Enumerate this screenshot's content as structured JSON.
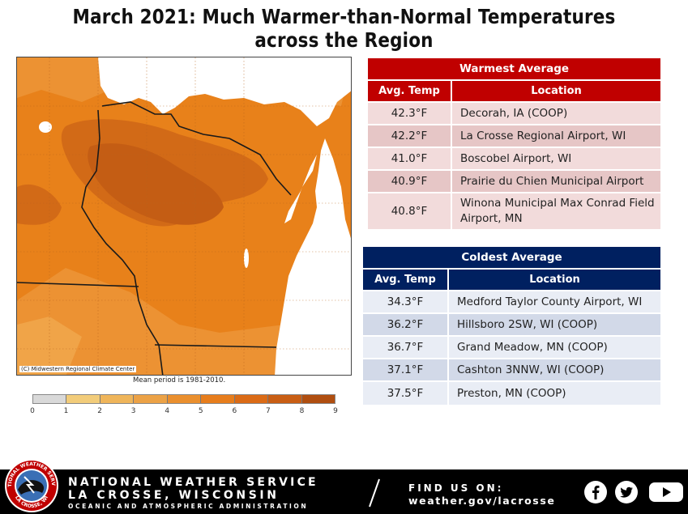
{
  "title": "March 2021:  Much Warmer-than-Normal Temperatures across the Region",
  "map": {
    "credit": "(C) Midwestern Regional Climate Center",
    "mean_period": "Mean period is 1981-2010.",
    "scale_labels": [
      "0",
      "1",
      "2",
      "3",
      "4",
      "5",
      "6",
      "7",
      "8",
      "9"
    ],
    "scale_colors": [
      "#d9d9d9",
      "#f2cc7a",
      "#efb55a",
      "#eca246",
      "#ea8f2e",
      "#e77d1c",
      "#db6b16",
      "#c95e14",
      "#b04e10"
    ],
    "colors": {
      "base": "#e8811a",
      "light": "#ec9233",
      "lighter": "#f0a448",
      "dark": "#d26a17",
      "darker": "#c45d14",
      "water": "#ffffff",
      "border": "#1a1a1a"
    }
  },
  "warmest": {
    "title": "Warmest  Average",
    "col_temp": "Avg. Temp",
    "col_location": "Location",
    "header_color": "#c00000",
    "row_colors": [
      "#f2dbdb",
      "#e6c6c6"
    ],
    "rows": [
      {
        "temp": "42.3°F",
        "location": "Decorah, IA (COOP)"
      },
      {
        "temp": "42.2°F",
        "location": "La Crosse Regional Airport, WI"
      },
      {
        "temp": "41.0°F",
        "location": "Boscobel Airport, WI"
      },
      {
        "temp": "40.9°F",
        "location": "Prairie du Chien Municipal Airport"
      },
      {
        "temp": "40.8°F",
        "location": "Winona Municipal Max Conrad Field Airport, MN"
      }
    ]
  },
  "coldest": {
    "title": "Coldest Average",
    "col_temp": "Avg. Temp",
    "col_location": "Location",
    "header_color": "#002060",
    "row_colors": [
      "#e9edf5",
      "#d2d9e8"
    ],
    "rows": [
      {
        "temp": "34.3°F",
        "location": "Medford Taylor County Airport, WI"
      },
      {
        "temp": "36.2°F",
        "location": "Hillsboro 2SW, WI (COOP)"
      },
      {
        "temp": "36.7°F",
        "location": "Grand Meadow, MN (COOP)"
      },
      {
        "temp": "37.1°F",
        "location": "Cashton 3NNW, WI (COOP)"
      },
      {
        "temp": "37.5°F",
        "location": "Preston, MN (COOP)"
      }
    ]
  },
  "footer": {
    "line1": "NATIONAL WEATHER SERVICE",
    "line2": "LA CROSSE, WISCONSIN",
    "line3": "OCEANIC AND ATMOSPHERIC ADMINISTRATION",
    "find_label": "FIND US ON:",
    "url": "weather.gov/lacrosse",
    "logo_text_top": "NATIONAL WEATHER SERVICE",
    "logo_text_bottom": "LA CROSSE, WI",
    "icons": [
      "facebook-icon",
      "twitter-icon",
      "youtube-icon"
    ]
  }
}
